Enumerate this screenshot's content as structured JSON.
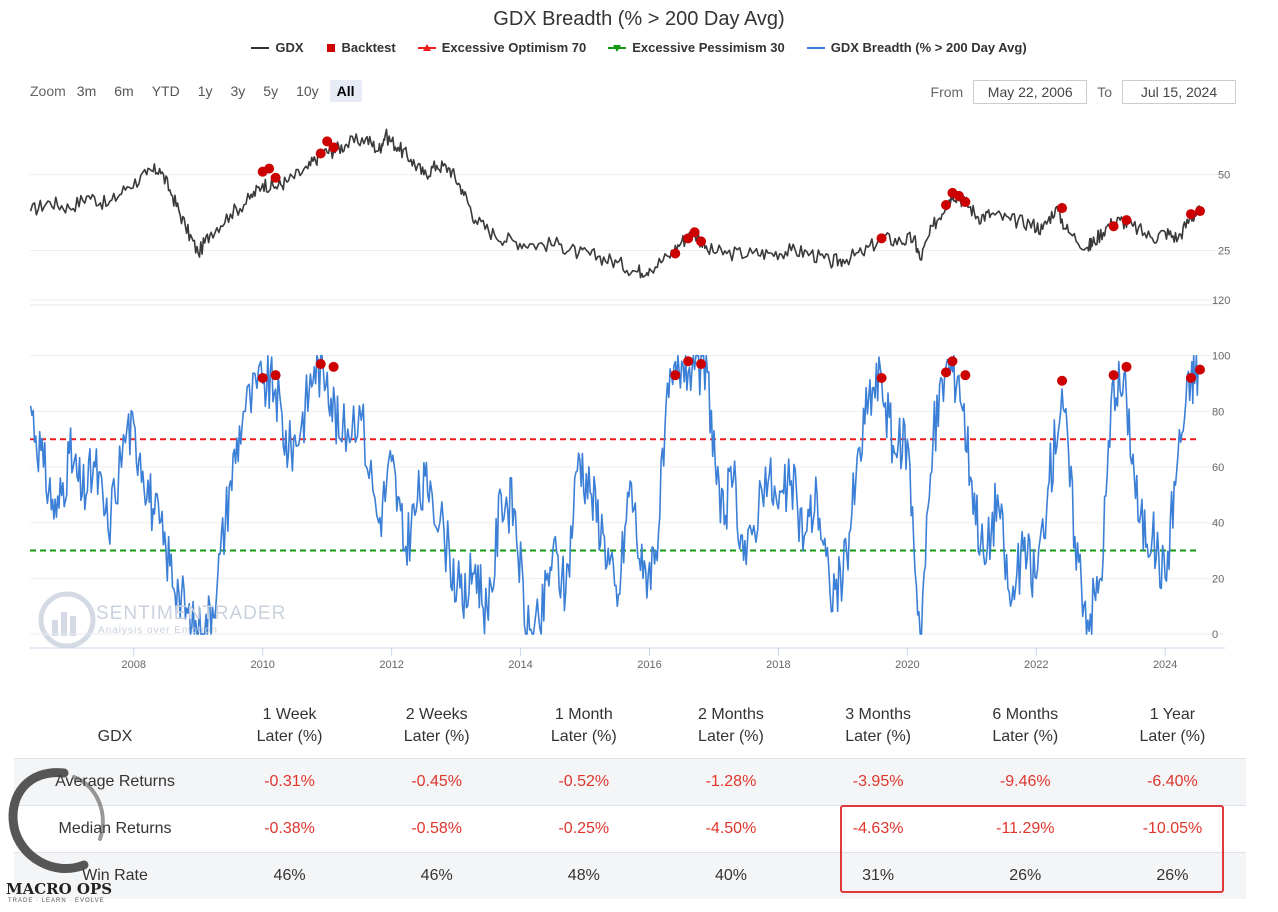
{
  "chart_data": {
    "type": "line",
    "title": "GDX Breadth (% > 200 Day Avg)",
    "legend": [
      {
        "name": "GDX",
        "marker": "line",
        "color": "#333333"
      },
      {
        "name": "Backtest",
        "marker": "square",
        "color": "#cc0000"
      },
      {
        "name": "Excessive Optimism 70",
        "marker": "triangle",
        "color": "#ee1c1c"
      },
      {
        "name": "Excessive Pessimism 30",
        "marker": "triangle-down",
        "color": "#119911"
      },
      {
        "name": "GDX Breadth (% > 200 Day Avg)",
        "marker": "line",
        "color": "#3c7fd6"
      }
    ],
    "x_ticks": [
      "2008",
      "2010",
      "2012",
      "2014",
      "2016",
      "2018",
      "2020",
      "2022",
      "2024"
    ],
    "x_range": [
      2006.39,
      2024.54
    ],
    "top_panel": {
      "series": "GDX",
      "y_ticks": [
        25,
        50
      ],
      "ylim": [
        7,
        73
      ],
      "points": [
        [
          2006.4,
          38
        ],
        [
          2006.7,
          41
        ],
        [
          2007.0,
          39
        ],
        [
          2007.3,
          43
        ],
        [
          2007.6,
          40
        ],
        [
          2007.9,
          46
        ],
        [
          2008.2,
          50
        ],
        [
          2008.4,
          52
        ],
        [
          2008.6,
          43
        ],
        [
          2008.8,
          33
        ],
        [
          2009.0,
          24
        ],
        [
          2009.2,
          31
        ],
        [
          2009.5,
          37
        ],
        [
          2009.8,
          42
        ],
        [
          2010.0,
          47
        ],
        [
          2010.2,
          46
        ],
        [
          2010.4,
          48
        ],
        [
          2010.7,
          52
        ],
        [
          2010.9,
          57
        ],
        [
          2011.1,
          58
        ],
        [
          2011.3,
          60
        ],
        [
          2011.6,
          62
        ],
        [
          2011.8,
          58
        ],
        [
          2011.9,
          63
        ],
        [
          2012.1,
          59
        ],
        [
          2012.3,
          55
        ],
        [
          2012.5,
          50
        ],
        [
          2012.7,
          53
        ],
        [
          2012.9,
          52
        ],
        [
          2013.1,
          45
        ],
        [
          2013.3,
          35
        ],
        [
          2013.6,
          30
        ],
        [
          2013.9,
          28
        ],
        [
          2014.2,
          27
        ],
        [
          2014.6,
          27
        ],
        [
          2014.9,
          24
        ],
        [
          2015.2,
          23
        ],
        [
          2015.5,
          21
        ],
        [
          2015.8,
          18
        ],
        [
          2016.0,
          19
        ],
        [
          2016.3,
          23
        ],
        [
          2016.5,
          28
        ],
        [
          2016.7,
          31
        ],
        [
          2016.9,
          25
        ],
        [
          2017.2,
          24
        ],
        [
          2017.6,
          24
        ],
        [
          2017.9,
          24
        ],
        [
          2018.2,
          25
        ],
        [
          2018.5,
          24
        ],
        [
          2018.8,
          21
        ],
        [
          2019.0,
          22
        ],
        [
          2019.3,
          24
        ],
        [
          2019.6,
          29
        ],
        [
          2019.9,
          28
        ],
        [
          2020.1,
          29
        ],
        [
          2020.2,
          22
        ],
        [
          2020.4,
          33
        ],
        [
          2020.6,
          40
        ],
        [
          2020.7,
          44
        ],
        [
          2020.9,
          41
        ],
        [
          2021.1,
          36
        ],
        [
          2021.3,
          37
        ],
        [
          2021.6,
          35
        ],
        [
          2021.9,
          34
        ],
        [
          2022.1,
          32
        ],
        [
          2022.3,
          39
        ],
        [
          2022.5,
          31
        ],
        [
          2022.8,
          26
        ],
        [
          2022.9,
          28
        ],
        [
          2023.1,
          33
        ],
        [
          2023.3,
          35
        ],
        [
          2023.5,
          33
        ],
        [
          2023.8,
          29
        ],
        [
          2024.0,
          31
        ],
        [
          2024.2,
          29
        ],
        [
          2024.4,
          36
        ],
        [
          2024.54,
          38
        ]
      ],
      "backtest_points": [
        [
          2010.0,
          51
        ],
        [
          2010.1,
          52
        ],
        [
          2010.2,
          49
        ],
        [
          2010.9,
          57
        ],
        [
          2011.0,
          61
        ],
        [
          2011.1,
          59
        ],
        [
          2016.4,
          24
        ],
        [
          2016.6,
          29
        ],
        [
          2016.7,
          31
        ],
        [
          2016.8,
          28
        ],
        [
          2019.6,
          29
        ],
        [
          2020.6,
          40
        ],
        [
          2020.7,
          44
        ],
        [
          2020.8,
          43
        ],
        [
          2020.9,
          41
        ],
        [
          2022.4,
          39
        ],
        [
          2023.2,
          33
        ],
        [
          2023.4,
          35
        ],
        [
          2024.4,
          37
        ],
        [
          2024.54,
          38
        ]
      ]
    },
    "bottom_panel": {
      "series": "GDX Breadth (% > 200 Day Avg)",
      "y_ticks": [
        0,
        20,
        40,
        60,
        80,
        100,
        120
      ],
      "ylim": [
        -5,
        120
      ],
      "optimism_line": 70,
      "pessimism_line": 30,
      "points": [
        [
          2006.4,
          82
        ],
        [
          2006.6,
          60
        ],
        [
          2006.8,
          42
        ],
        [
          2007.0,
          65
        ],
        [
          2007.2,
          50
        ],
        [
          2007.4,
          60
        ],
        [
          2007.6,
          38
        ],
        [
          2007.9,
          75
        ],
        [
          2008.1,
          65
        ],
        [
          2008.3,
          45
        ],
        [
          2008.5,
          30
        ],
        [
          2008.7,
          15
        ],
        [
          2008.9,
          2
        ],
        [
          2009.1,
          0
        ],
        [
          2009.3,
          20
        ],
        [
          2009.5,
          55
        ],
        [
          2009.7,
          80
        ],
        [
          2010.0,
          90
        ],
        [
          2010.2,
          88
        ],
        [
          2010.4,
          65
        ],
        [
          2010.6,
          75
        ],
        [
          2010.8,
          96
        ],
        [
          2011.0,
          94
        ],
        [
          2011.2,
          70
        ],
        [
          2011.5,
          82
        ],
        [
          2011.8,
          40
        ],
        [
          2012.0,
          62
        ],
        [
          2012.2,
          30
        ],
        [
          2012.4,
          48
        ],
        [
          2012.6,
          55
        ],
        [
          2012.9,
          28
        ],
        [
          2013.1,
          10
        ],
        [
          2013.3,
          25
        ],
        [
          2013.5,
          5
        ],
        [
          2013.7,
          50
        ],
        [
          2013.9,
          45
        ],
        [
          2014.1,
          0
        ],
        [
          2014.3,
          2
        ],
        [
          2014.5,
          30
        ],
        [
          2014.7,
          15
        ],
        [
          2014.9,
          65
        ],
        [
          2015.1,
          50
        ],
        [
          2015.3,
          35
        ],
        [
          2015.5,
          10
        ],
        [
          2015.7,
          55
        ],
        [
          2015.9,
          20
        ],
        [
          2016.1,
          30
        ],
        [
          2016.3,
          85
        ],
        [
          2016.5,
          98
        ],
        [
          2016.7,
          95
        ],
        [
          2016.9,
          94
        ],
        [
          2017.1,
          40
        ],
        [
          2017.3,
          55
        ],
        [
          2017.5,
          25
        ],
        [
          2017.8,
          60
        ],
        [
          2018.0,
          45
        ],
        [
          2018.2,
          55
        ],
        [
          2018.4,
          35
        ],
        [
          2018.6,
          50
        ],
        [
          2018.8,
          15
        ],
        [
          2019.0,
          20
        ],
        [
          2019.2,
          55
        ],
        [
          2019.4,
          85
        ],
        [
          2019.6,
          92
        ],
        [
          2019.8,
          65
        ],
        [
          2020.0,
          70
        ],
        [
          2020.2,
          0
        ],
        [
          2020.4,
          70
        ],
        [
          2020.6,
          96
        ],
        [
          2020.8,
          93
        ],
        [
          2021.0,
          55
        ],
        [
          2021.2,
          25
        ],
        [
          2021.4,
          50
        ],
        [
          2021.6,
          10
        ],
        [
          2021.8,
          30
        ],
        [
          2022.0,
          20
        ],
        [
          2022.2,
          55
        ],
        [
          2022.4,
          88
        ],
        [
          2022.6,
          35
        ],
        [
          2022.8,
          5
        ],
        [
          2023.0,
          20
        ],
        [
          2023.2,
          92
        ],
        [
          2023.4,
          85
        ],
        [
          2023.6,
          40
        ],
        [
          2023.8,
          35
        ],
        [
          2024.0,
          20
        ],
        [
          2024.2,
          65
        ],
        [
          2024.4,
          92
        ],
        [
          2024.54,
          95
        ]
      ],
      "backtest_points": [
        [
          2010.0,
          92
        ],
        [
          2010.2,
          93
        ],
        [
          2010.9,
          97
        ],
        [
          2011.1,
          96
        ],
        [
          2016.4,
          93
        ],
        [
          2016.6,
          98
        ],
        [
          2016.8,
          97
        ],
        [
          2019.6,
          92
        ],
        [
          2020.6,
          94
        ],
        [
          2020.7,
          98
        ],
        [
          2020.9,
          93
        ],
        [
          2022.4,
          91
        ],
        [
          2023.2,
          93
        ],
        [
          2023.4,
          96
        ],
        [
          2024.4,
          92
        ],
        [
          2024.54,
          95
        ]
      ]
    }
  },
  "zoom": {
    "label": "Zoom",
    "buttons": [
      "3m",
      "6m",
      "YTD",
      "1y",
      "3y",
      "5y",
      "10y",
      "All"
    ],
    "active": "All"
  },
  "range": {
    "from_label": "From",
    "from_value": "May 22, 2006",
    "to_label": "To",
    "to_value": "Jul 15, 2024"
  },
  "watermark": {
    "name": "SENTIMENTRADER",
    "tagline": "Analysis over Emotion"
  },
  "table": {
    "corner": "GDX",
    "headers": [
      [
        "1 Week",
        "Later (%)"
      ],
      [
        "2 Weeks",
        "Later (%)"
      ],
      [
        "1 Month",
        "Later (%)"
      ],
      [
        "2 Months",
        "Later (%)"
      ],
      [
        "3 Months",
        "Later (%)"
      ],
      [
        "6 Months",
        "Later (%)"
      ],
      [
        "1 Year",
        "Later (%)"
      ]
    ],
    "rows": [
      {
        "label": "Average Returns",
        "values": [
          "-0.31%",
          "-0.45%",
          "-0.52%",
          "-1.28%",
          "-3.95%",
          "-9.46%",
          "-6.40%"
        ]
      },
      {
        "label": "Median Returns",
        "values": [
          "-0.38%",
          "-0.58%",
          "-0.25%",
          "-4.50%",
          "-4.63%",
          "-11.29%",
          "-10.05%"
        ]
      },
      {
        "label": "Win Rate",
        "values": [
          "46%",
          "46%",
          "48%",
          "40%",
          "31%",
          "26%",
          "26%"
        ]
      }
    ]
  },
  "logo": {
    "name": "MACRO OPS",
    "tagline": "TRADE · LEARN · EVOLVE"
  }
}
